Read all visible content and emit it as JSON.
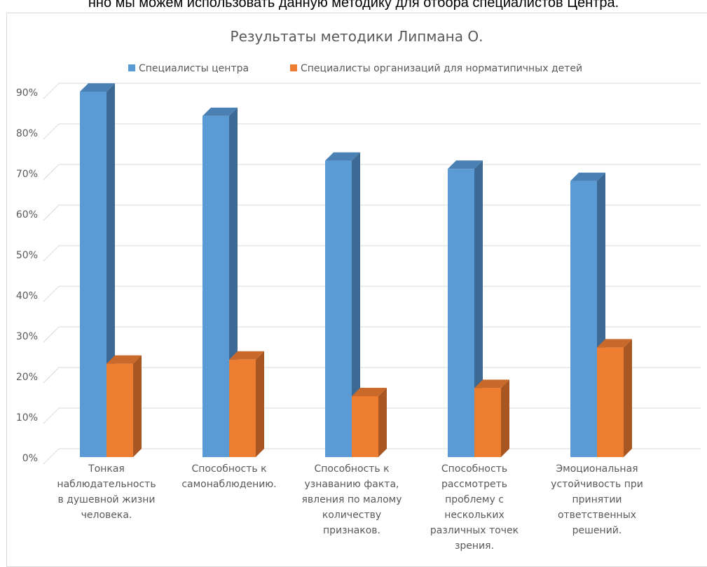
{
  "page_top_text": "нно мы можем использовать данную методику для отбора специалистов Центра.",
  "chart_data": {
    "type": "bar",
    "title": "Результаты методики Липмана О.",
    "categories": [
      [
        "Тонкая",
        "наблюдательность",
        "в душевной жизни",
        "человека."
      ],
      [
        "Способность к",
        "самонаблюдению."
      ],
      [
        "Способность к",
        "узнаванию факта,",
        "явления по малому",
        "количеству",
        "признаков."
      ],
      [
        "Способность",
        "рассмотреть",
        "проблему с",
        "нескольких",
        "различных точек",
        "зрения."
      ],
      [
        "Эмоциональная",
        "устойчивость при",
        "принятии",
        "ответственных",
        "решений."
      ]
    ],
    "series": [
      {
        "name": "Специалисты центра",
        "values": [
          90,
          84,
          73,
          71,
          68
        ]
      },
      {
        "name": "Специалисты организаций для норматипичных детей",
        "values": [
          23,
          24,
          15,
          17,
          27
        ]
      }
    ],
    "ylim": [
      0,
      90
    ],
    "yticks": [
      "0%",
      "10%",
      "20%",
      "30%",
      "40%",
      "50%",
      "60%",
      "70%",
      "80%",
      "90%"
    ],
    "grid": true,
    "legend_position": "top",
    "colors": {
      "series0_front": "#5b9bd5",
      "series0_side": "#3d6a95",
      "series0_top": "#4a80b4",
      "series1_front": "#ed7d31",
      "series1_side": "#a85622",
      "series1_top": "#c9692a",
      "grid": "#d9d9d9",
      "text": "#595959"
    }
  }
}
